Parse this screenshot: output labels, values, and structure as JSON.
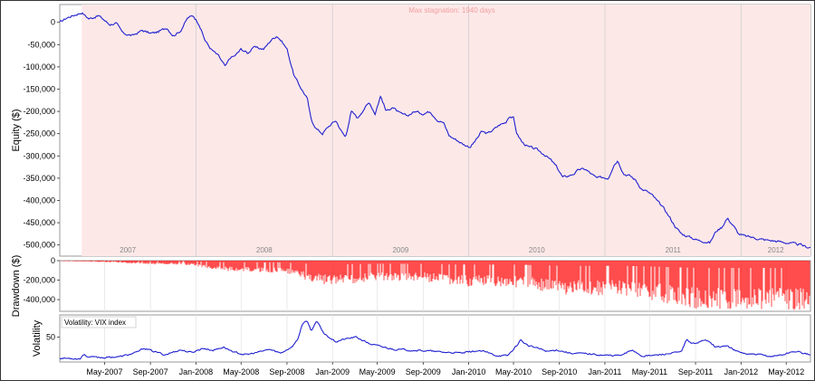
{
  "chart_data": [
    {
      "type": "line",
      "name": "equity",
      "ylabel": "Equity ($)",
      "ylim": [
        -525000,
        40000
      ],
      "yticks": [
        0,
        -50000,
        -100000,
        -150000,
        -200000,
        -250000,
        -300000,
        -350000,
        -400000,
        -450000,
        -500000
      ],
      "ytick_labels": [
        "0",
        "-50,000",
        "-100,000",
        "-150,000",
        "-200,000",
        "-250,000",
        "-300,000",
        "-350,000",
        "-400,000",
        "-450,000",
        "-500,000"
      ],
      "year_labels": [
        "2007",
        "2008",
        "2009",
        "2010",
        "2011",
        "2012"
      ],
      "annotation": "Max stagnation: 1940 days",
      "stagnation_start": "2007-03",
      "line_color": "#2020d0",
      "shade_color": "#fde8e8",
      "points": [
        [
          "2007-01-01",
          0
        ],
        [
          "2007-01-20",
          10000
        ],
        [
          "2007-02-15",
          18000
        ],
        [
          "2007-03-01",
          22000
        ],
        [
          "2007-03-20",
          8000
        ],
        [
          "2007-04-15",
          15000
        ],
        [
          "2007-05-15",
          -5000
        ],
        [
          "2007-06-01",
          -2000
        ],
        [
          "2007-06-20",
          -25000
        ],
        [
          "2007-07-15",
          -30000
        ],
        [
          "2007-08-10",
          -18000
        ],
        [
          "2007-09-01",
          -25000
        ],
        [
          "2007-09-20",
          -22000
        ],
        [
          "2007-10-15",
          -12000
        ],
        [
          "2007-11-01",
          -30000
        ],
        [
          "2007-11-20",
          -20000
        ],
        [
          "2007-12-10",
          10000
        ],
        [
          "2007-12-25",
          15000
        ],
        [
          "2008-01-10",
          -5000
        ],
        [
          "2008-01-25",
          -40000
        ],
        [
          "2008-02-10",
          -60000
        ],
        [
          "2008-03-01",
          -75000
        ],
        [
          "2008-03-20",
          -100000
        ],
        [
          "2008-04-01",
          -80000
        ],
        [
          "2008-04-15",
          -75000
        ],
        [
          "2008-05-01",
          -60000
        ],
        [
          "2008-05-20",
          -70000
        ],
        [
          "2008-06-01",
          -55000
        ],
        [
          "2008-06-15",
          -58000
        ],
        [
          "2008-07-01",
          -60000
        ],
        [
          "2008-07-20",
          -40000
        ],
        [
          "2008-08-05",
          -30000
        ],
        [
          "2008-08-20",
          -45000
        ],
        [
          "2008-09-01",
          -60000
        ],
        [
          "2008-09-20",
          -120000
        ],
        [
          "2008-10-10",
          -150000
        ],
        [
          "2008-10-25",
          -170000
        ],
        [
          "2008-11-05",
          -220000
        ],
        [
          "2008-11-20",
          -240000
        ],
        [
          "2008-12-05",
          -250000
        ],
        [
          "2008-12-20",
          -235000
        ],
        [
          "2009-01-10",
          -220000
        ],
        [
          "2009-01-25",
          -245000
        ],
        [
          "2009-02-05",
          -258000
        ],
        [
          "2009-02-20",
          -200000
        ],
        [
          "2009-03-10",
          -215000
        ],
        [
          "2009-03-25",
          -195000
        ],
        [
          "2009-04-10",
          -180000
        ],
        [
          "2009-04-25",
          -205000
        ],
        [
          "2009-05-10",
          -165000
        ],
        [
          "2009-05-25",
          -200000
        ],
        [
          "2009-06-10",
          -190000
        ],
        [
          "2009-07-01",
          -205000
        ],
        [
          "2009-07-20",
          -210000
        ],
        [
          "2009-08-10",
          -200000
        ],
        [
          "2009-09-01",
          -205000
        ],
        [
          "2009-09-20",
          -200000
        ],
        [
          "2009-10-10",
          -220000
        ],
        [
          "2009-10-25",
          -225000
        ],
        [
          "2009-11-10",
          -255000
        ],
        [
          "2009-12-01",
          -265000
        ],
        [
          "2009-12-20",
          -275000
        ],
        [
          "2010-01-05",
          -280000
        ],
        [
          "2010-01-20",
          -265000
        ],
        [
          "2010-02-05",
          -245000
        ],
        [
          "2010-02-20",
          -250000
        ],
        [
          "2010-03-10",
          -240000
        ],
        [
          "2010-03-25",
          -230000
        ],
        [
          "2010-04-10",
          -225000
        ],
        [
          "2010-04-20",
          -210000
        ],
        [
          "2010-05-01",
          -215000
        ],
        [
          "2010-05-10",
          -250000
        ],
        [
          "2010-05-25",
          -270000
        ],
        [
          "2010-06-10",
          -280000
        ],
        [
          "2010-07-01",
          -285000
        ],
        [
          "2010-07-20",
          -295000
        ],
        [
          "2010-08-10",
          -310000
        ],
        [
          "2010-08-25",
          -325000
        ],
        [
          "2010-09-10",
          -348000
        ],
        [
          "2010-09-25",
          -345000
        ],
        [
          "2010-10-10",
          -340000
        ],
        [
          "2010-10-25",
          -330000
        ],
        [
          "2010-11-10",
          -330000
        ],
        [
          "2010-11-25",
          -340000
        ],
        [
          "2010-12-10",
          -350000
        ],
        [
          "2010-12-25",
          -348000
        ],
        [
          "2011-01-10",
          -350000
        ],
        [
          "2011-01-25",
          -320000
        ],
        [
          "2011-02-05",
          -310000
        ],
        [
          "2011-02-20",
          -340000
        ],
        [
          "2011-03-10",
          -345000
        ],
        [
          "2011-03-25",
          -355000
        ],
        [
          "2011-04-10",
          -375000
        ],
        [
          "2011-04-25",
          -380000
        ],
        [
          "2011-05-10",
          -390000
        ],
        [
          "2011-05-25",
          -405000
        ],
        [
          "2011-06-10",
          -420000
        ],
        [
          "2011-06-25",
          -440000
        ],
        [
          "2011-07-10",
          -460000
        ],
        [
          "2011-07-25",
          -475000
        ],
        [
          "2011-08-10",
          -480000
        ],
        [
          "2011-08-25",
          -485000
        ],
        [
          "2011-09-10",
          -490000
        ],
        [
          "2011-09-25",
          -492000
        ],
        [
          "2011-10-10",
          -495000
        ],
        [
          "2011-10-25",
          -470000
        ],
        [
          "2011-11-10",
          -460000
        ],
        [
          "2011-11-25",
          -440000
        ],
        [
          "2011-12-10",
          -455000
        ],
        [
          "2011-12-25",
          -475000
        ],
        [
          "2012-01-10",
          -480000
        ],
        [
          "2012-01-25",
          -482000
        ],
        [
          "2012-02-10",
          -485000
        ],
        [
          "2012-03-01",
          -488000
        ],
        [
          "2012-03-20",
          -490000
        ],
        [
          "2012-04-10",
          -492000
        ],
        [
          "2012-05-01",
          -495000
        ],
        [
          "2012-05-20",
          -497000
        ],
        [
          "2012-06-10",
          -500000
        ],
        [
          "2012-06-25",
          -505000
        ]
      ]
    },
    {
      "type": "bar",
      "name": "drawdown",
      "ylabel": "Drawdown ($)",
      "ylim": [
        -520000,
        0
      ],
      "yticks": [
        0,
        -200000,
        -400000
      ],
      "ytick_labels": [
        "0",
        "-200,000",
        "-400,000"
      ],
      "bar_color": "#ff0000",
      "envelope": [
        [
          "2007-01-01",
          -5000
        ],
        [
          "2007-03-01",
          -8000
        ],
        [
          "2007-06-01",
          -20000
        ],
        [
          "2007-09-01",
          -40000
        ],
        [
          "2007-12-01",
          -40000
        ],
        [
          "2008-01-20",
          -70000
        ],
        [
          "2008-03-20",
          -110000
        ],
        [
          "2008-06-01",
          -115000
        ],
        [
          "2008-09-01",
          -130000
        ],
        [
          "2008-10-20",
          -200000
        ],
        [
          "2008-12-01",
          -250000
        ],
        [
          "2009-01-20",
          -260000
        ],
        [
          "2009-03-01",
          -240000
        ],
        [
          "2009-05-10",
          -210000
        ],
        [
          "2009-07-01",
          -215000
        ],
        [
          "2009-09-01",
          -215000
        ],
        [
          "2009-12-01",
          -265000
        ],
        [
          "2010-02-01",
          -270000
        ],
        [
          "2010-04-20",
          -265000
        ],
        [
          "2010-07-01",
          -300000
        ],
        [
          "2010-09-10",
          -350000
        ],
        [
          "2010-12-01",
          -360000
        ],
        [
          "2011-02-05",
          -350000
        ],
        [
          "2011-04-20",
          -390000
        ],
        [
          "2011-06-20",
          -440000
        ],
        [
          "2011-08-20",
          -490000
        ],
        [
          "2011-10-10",
          -500000
        ],
        [
          "2012-01-01",
          -495000
        ],
        [
          "2012-03-20",
          -500000
        ],
        [
          "2012-06-25",
          -510000
        ]
      ]
    },
    {
      "type": "line",
      "name": "volatility",
      "ylabel": "Volatility",
      "legend": "Volatility: VIX index",
      "ylim": [
        5,
        90
      ],
      "yticks": [
        50
      ],
      "ytick_labels": [
        "50"
      ],
      "line_color": "#2020d0",
      "xtick_labels": [
        "May-2007",
        "Sep-2007",
        "Jan-2008",
        "May-2008",
        "Sep-2008",
        "Jan-2009",
        "May-2009",
        "Sep-2009",
        "Jan-2010",
        "May-2010",
        "Sep-2010",
        "Jan-2011",
        "May-2011",
        "Sep-2011",
        "Jan-2012",
        "May-2012"
      ],
      "points": [
        [
          "2007-01-01",
          12
        ],
        [
          "2007-02-25",
          11
        ],
        [
          "2007-03-05",
          19
        ],
        [
          "2007-03-20",
          14
        ],
        [
          "2007-05-01",
          13
        ],
        [
          "2007-06-15",
          15
        ],
        [
          "2007-07-25",
          22
        ],
        [
          "2007-08-15",
          30
        ],
        [
          "2007-09-10",
          24
        ],
        [
          "2007-10-10",
          18
        ],
        [
          "2007-11-20",
          27
        ],
        [
          "2007-12-20",
          22
        ],
        [
          "2008-01-20",
          30
        ],
        [
          "2008-02-15",
          26
        ],
        [
          "2008-03-15",
          32
        ],
        [
          "2008-04-15",
          22
        ],
        [
          "2008-05-15",
          18
        ],
        [
          "2008-06-25",
          24
        ],
        [
          "2008-07-15",
          28
        ],
        [
          "2008-08-15",
          21
        ],
        [
          "2008-09-15",
          33
        ],
        [
          "2008-09-30",
          46
        ],
        [
          "2008-10-10",
          70
        ],
        [
          "2008-10-24",
          80
        ],
        [
          "2008-11-05",
          62
        ],
        [
          "2008-11-20",
          78
        ],
        [
          "2008-12-10",
          56
        ],
        [
          "2009-01-10",
          42
        ],
        [
          "2009-02-01",
          46
        ],
        [
          "2009-03-05",
          50
        ],
        [
          "2009-04-10",
          38
        ],
        [
          "2009-05-15",
          32
        ],
        [
          "2009-06-15",
          28
        ],
        [
          "2009-07-15",
          27
        ],
        [
          "2009-08-15",
          26
        ],
        [
          "2009-09-15",
          25
        ],
        [
          "2009-10-15",
          23
        ],
        [
          "2009-11-15",
          22
        ],
        [
          "2009-12-15",
          21
        ],
        [
          "2010-01-20",
          25
        ],
        [
          "2010-02-10",
          24
        ],
        [
          "2010-03-15",
          17
        ],
        [
          "2010-04-15",
          16
        ],
        [
          "2010-05-10",
          35
        ],
        [
          "2010-05-20",
          45
        ],
        [
          "2010-06-10",
          34
        ],
        [
          "2010-07-05",
          30
        ],
        [
          "2010-08-01",
          24
        ],
        [
          "2010-08-25",
          27
        ],
        [
          "2010-10-01",
          21
        ],
        [
          "2010-11-15",
          20
        ],
        [
          "2011-01-01",
          17
        ],
        [
          "2011-02-15",
          17
        ],
        [
          "2011-03-16",
          27
        ],
        [
          "2011-04-10",
          16
        ],
        [
          "2011-05-15",
          17
        ],
        [
          "2011-06-20",
          20
        ],
        [
          "2011-07-25",
          23
        ],
        [
          "2011-08-08",
          45
        ],
        [
          "2011-08-25",
          38
        ],
        [
          "2011-09-22",
          43
        ],
        [
          "2011-10-05",
          45
        ],
        [
          "2011-10-25",
          32
        ],
        [
          "2011-11-25",
          34
        ],
        [
          "2011-12-20",
          24
        ],
        [
          "2012-01-20",
          19
        ],
        [
          "2012-02-20",
          18
        ],
        [
          "2012-03-20",
          15
        ],
        [
          "2012-04-20",
          18
        ],
        [
          "2012-05-20",
          24
        ],
        [
          "2012-06-05",
          23
        ],
        [
          "2012-06-25",
          19
        ]
      ]
    }
  ]
}
